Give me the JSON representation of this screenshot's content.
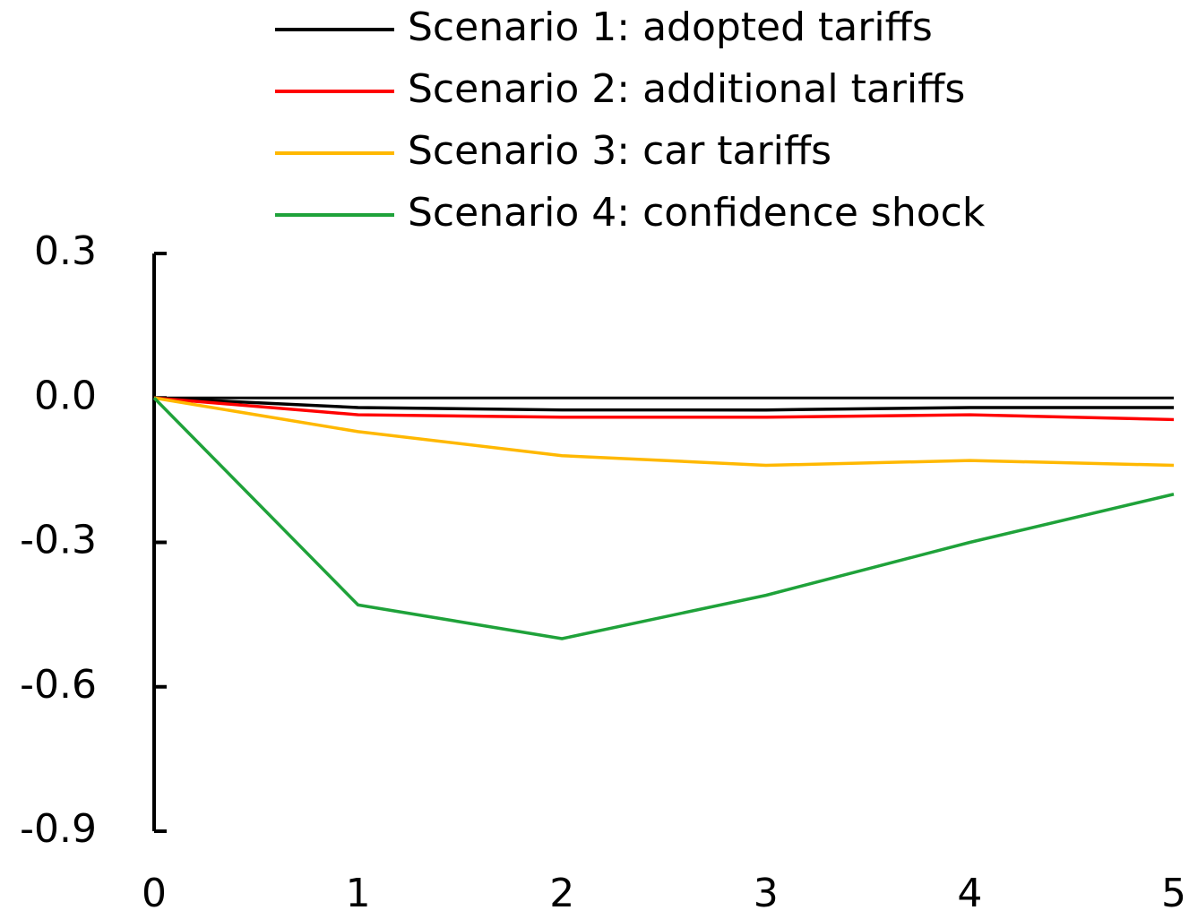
{
  "chart_data": {
    "type": "line",
    "x": [
      0,
      1,
      2,
      3,
      4,
      5
    ],
    "xlim": [
      0,
      5
    ],
    "xticks": [
      0,
      1,
      2,
      3,
      4,
      5
    ],
    "ylim": [
      -0.9,
      0.3
    ],
    "yticks": [
      0.3,
      {
        "value": 0,
        "label": "0.0"
      },
      -0.3,
      -0.6,
      -0.9
    ],
    "legend": "top",
    "series": [
      {
        "name": "Scenario 1: adopted tariffs",
        "color": "#000000",
        "values": [
          0,
          -0.02,
          -0.025,
          -0.025,
          -0.02,
          -0.02
        ]
      },
      {
        "name": "Scenario 2: additional tariffs",
        "color": "#ff0000",
        "values": [
          0,
          -0.035,
          -0.04,
          -0.04,
          -0.035,
          -0.045
        ]
      },
      {
        "name": "Scenario 3: car tariffs",
        "color": "#ffb800",
        "values": [
          0,
          -0.07,
          -0.12,
          -0.14,
          -0.13,
          -0.14
        ]
      },
      {
        "name": "Scenario 4: confidence shock",
        "color": "#1fa23a",
        "values": [
          0,
          -0.43,
          -0.5,
          -0.41,
          -0.3,
          -0.2
        ]
      }
    ]
  }
}
